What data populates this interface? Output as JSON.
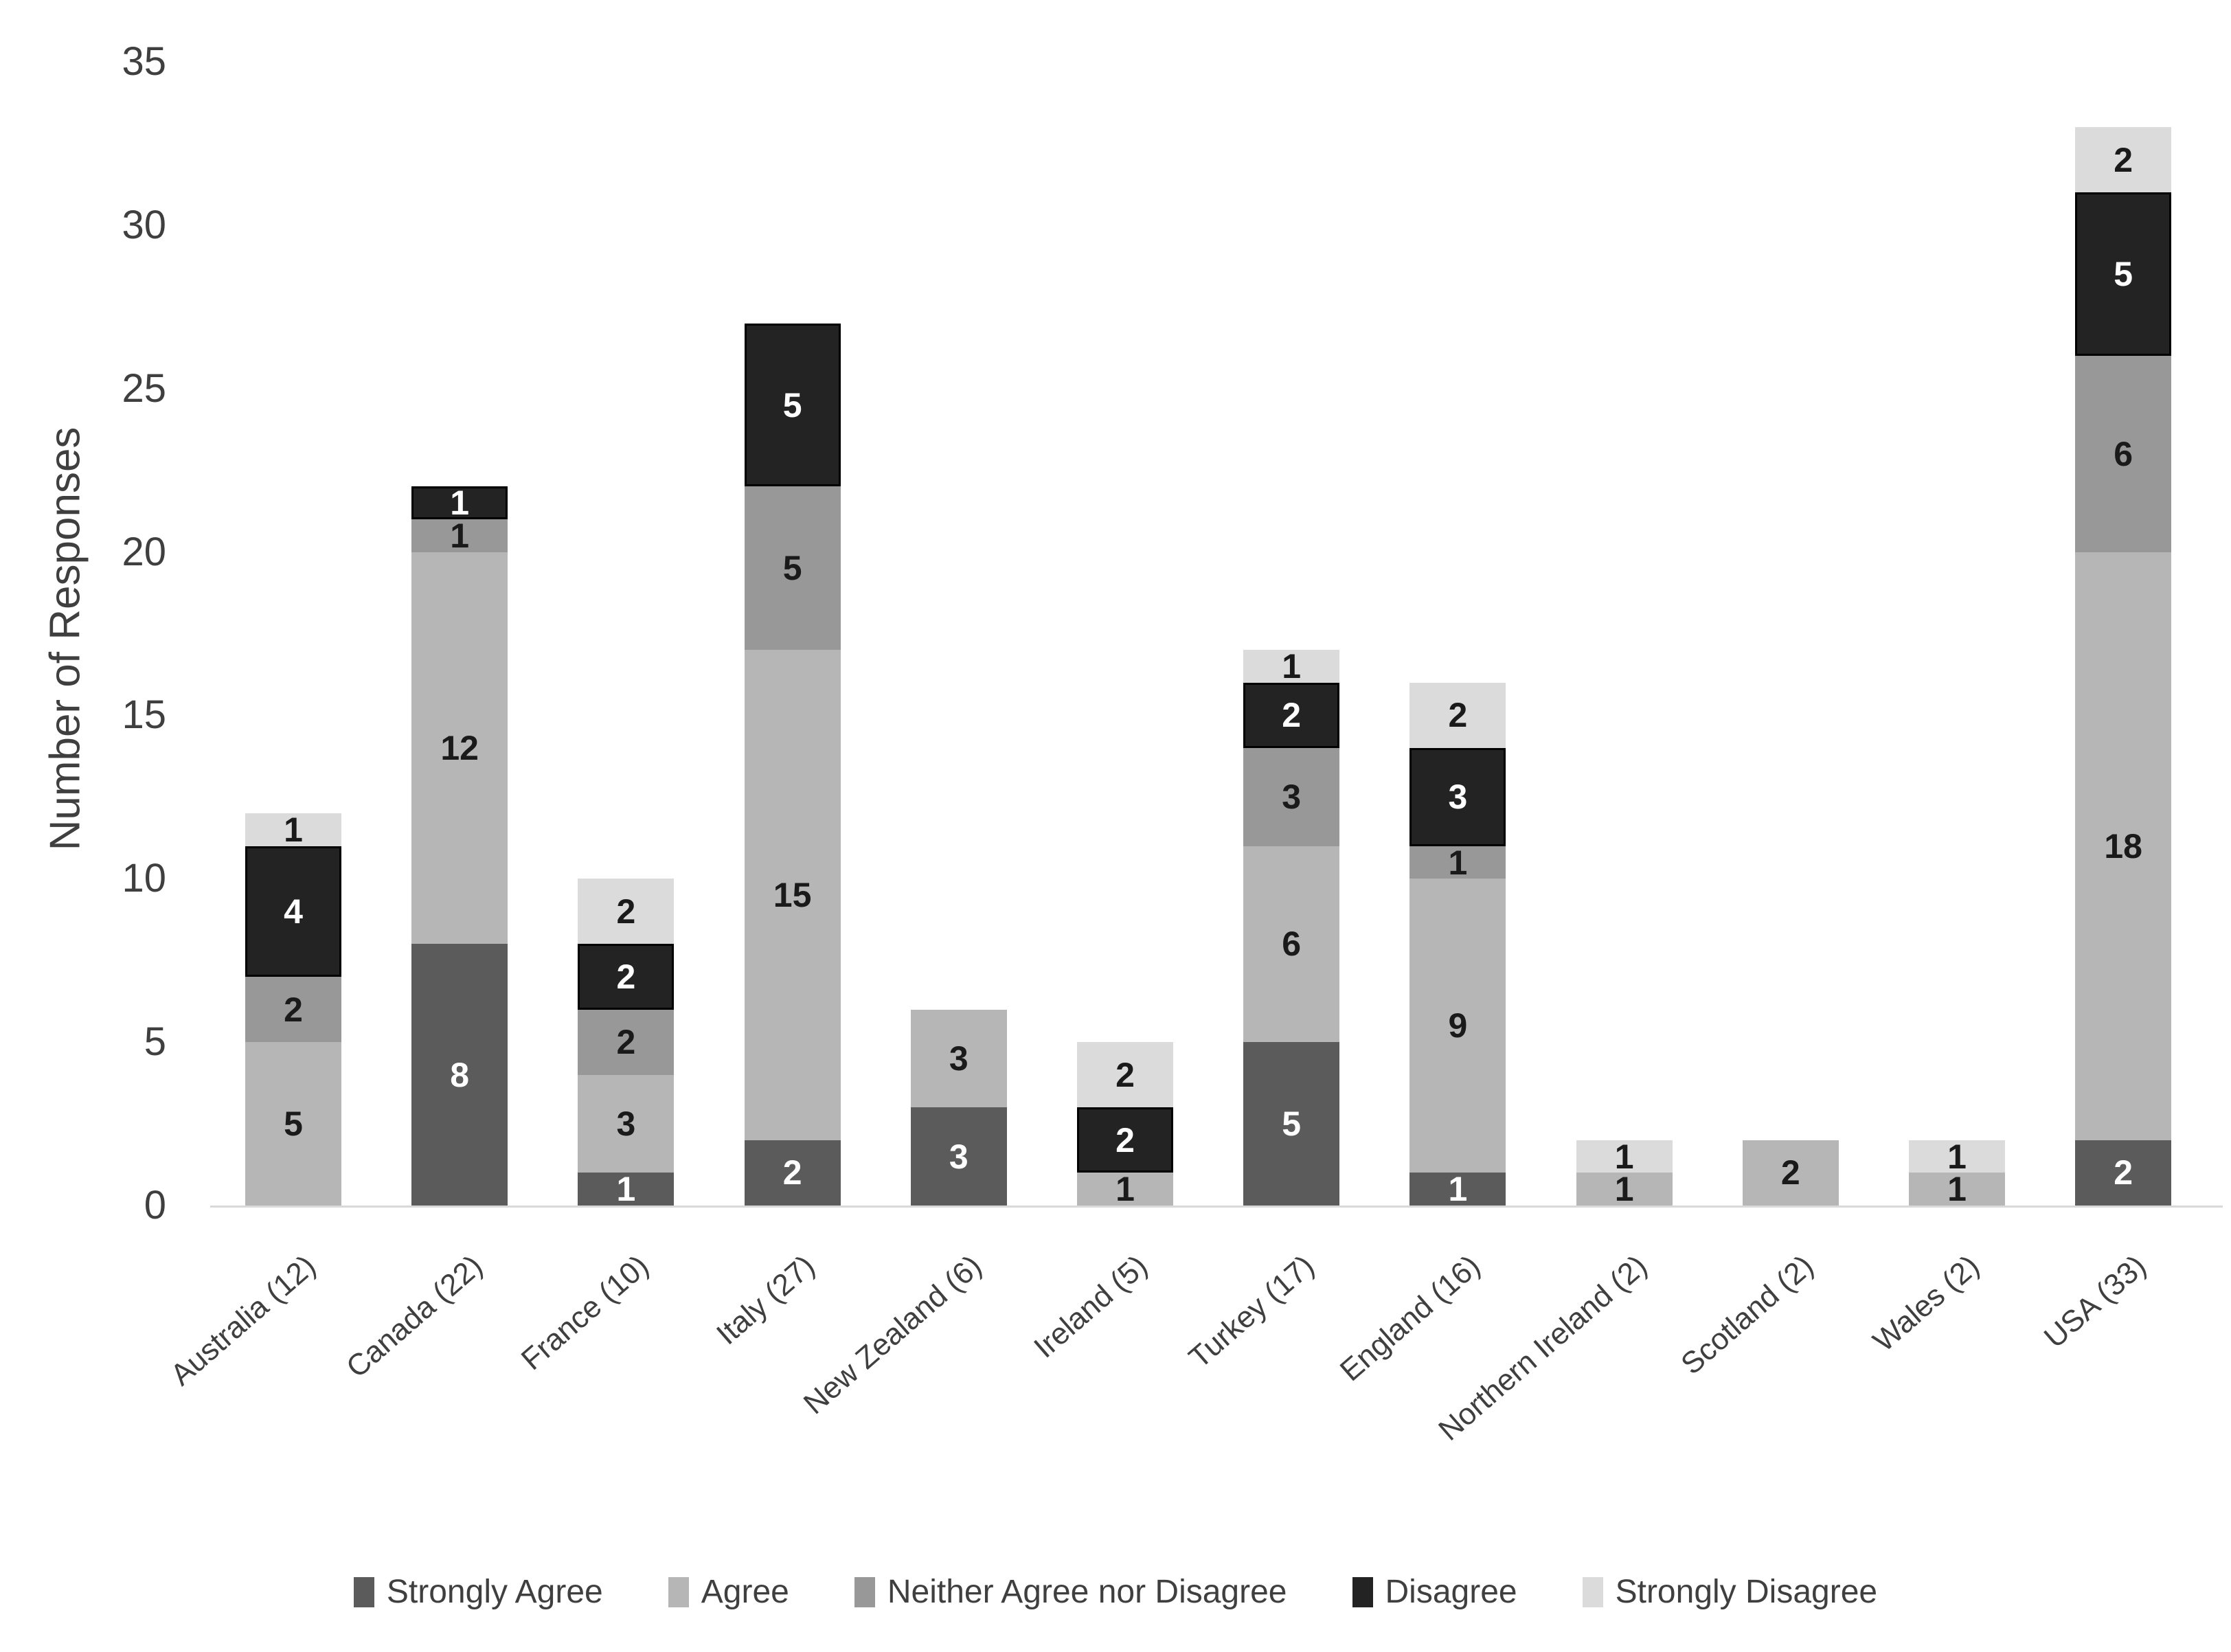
{
  "chart_data": {
    "type": "bar",
    "stacked": true,
    "title": "",
    "xlabel": "",
    "ylabel": "Number of Responses",
    "ylim": [
      0,
      35
    ],
    "yticks": [
      0,
      5,
      10,
      15,
      20,
      25,
      30,
      35
    ],
    "grid": false,
    "legend_position": "bottom",
    "categories": [
      "Australia (12)",
      "Canada (22)",
      "France (10)",
      "Italy (27)",
      "New Zealand (6)",
      "Ireland (5)",
      "Turkey (17)",
      "England (16)",
      "Northern Ireland (2)",
      "Scotland (2)",
      "Wales (2)",
      "USA (33)"
    ],
    "totals": [
      12,
      22,
      10,
      27,
      6,
      5,
      17,
      16,
      2,
      2,
      2,
      33
    ],
    "series": [
      {
        "name": "Strongly Agree",
        "color": "#5b5b5b",
        "label_color": "#ffffff",
        "values": [
          0,
          8,
          1,
          2,
          3,
          0,
          5,
          1,
          0,
          0,
          0,
          2
        ]
      },
      {
        "name": "Agree",
        "color": "#b6b6b6",
        "label_color": "#1a1a1a",
        "values": [
          5,
          12,
          3,
          15,
          3,
          1,
          6,
          9,
          1,
          2,
          1,
          18
        ]
      },
      {
        "name": "Neither Agree nor Disagree",
        "color": "#989898",
        "label_color": "#1a1a1a",
        "values": [
          2,
          1,
          2,
          5,
          0,
          0,
          3,
          1,
          0,
          0,
          0,
          6
        ]
      },
      {
        "name": "Disagree",
        "color": "#232323",
        "label_color": "#ffffff",
        "border_color": "#000000",
        "values": [
          4,
          1,
          2,
          5,
          0,
          2,
          2,
          3,
          0,
          0,
          0,
          5
        ]
      },
      {
        "name": "Strongly Disagree",
        "color": "#dbdbdb",
        "label_color": "#1a1a1a",
        "values": [
          1,
          0,
          2,
          0,
          0,
          2,
          1,
          2,
          1,
          0,
          1,
          2
        ]
      }
    ]
  },
  "axis_colors": {
    "text": "#3f3f3f",
    "baseline": "#d9d9d9"
  }
}
